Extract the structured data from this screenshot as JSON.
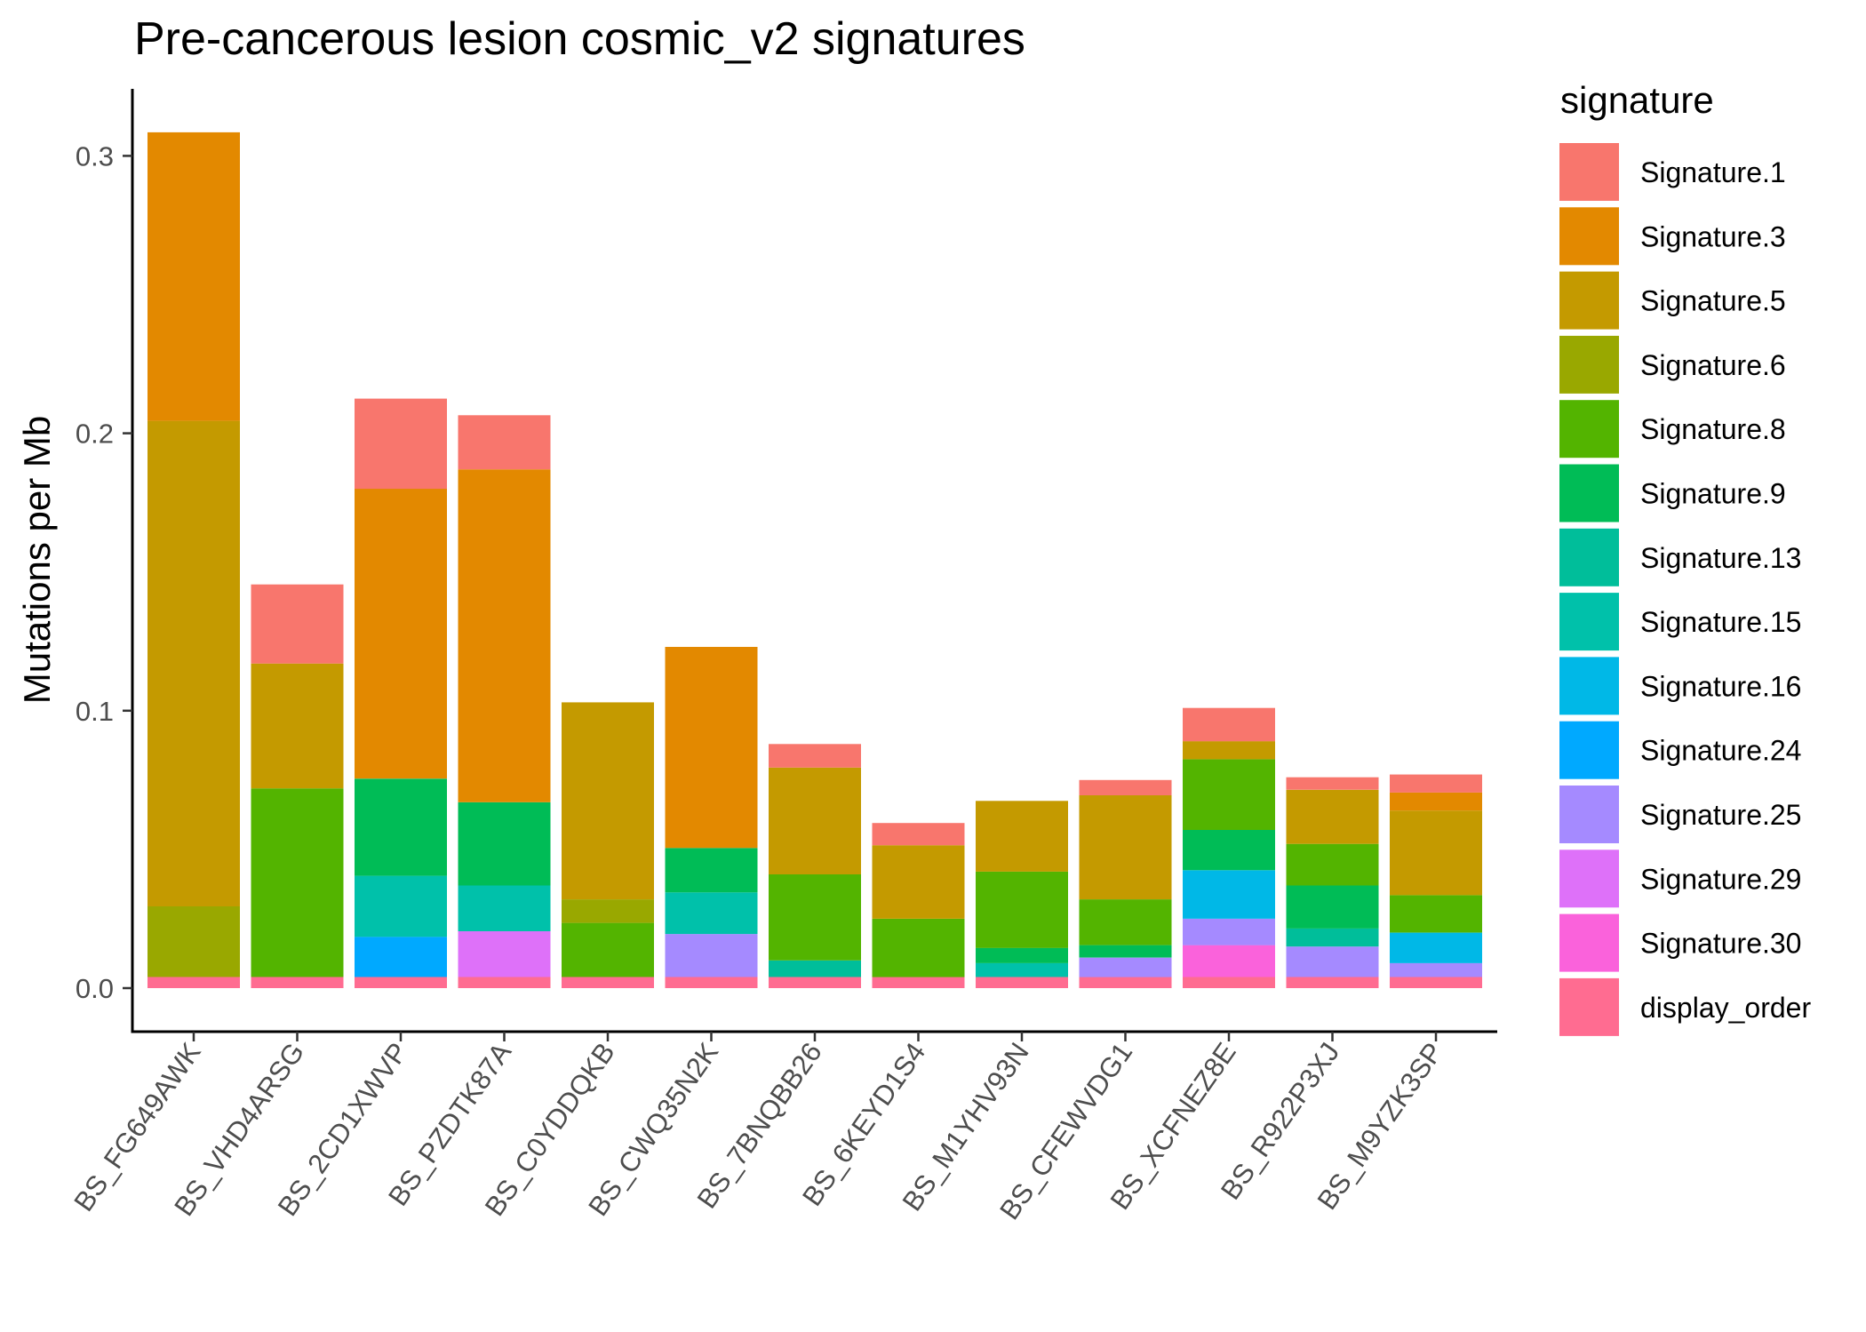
{
  "chart_data": {
    "type": "bar",
    "stacked": true,
    "title": "Pre-cancerous lesion cosmic_v2 signatures",
    "xlabel": "",
    "ylabel": "Mutations per Mb",
    "ylim": [
      -0.015,
      0.32
    ],
    "yticks": [
      "0.0",
      "0.1",
      "0.2",
      "0.3"
    ],
    "grid": false,
    "legend": {
      "title": "signature",
      "position": "right"
    },
    "categories": [
      "BS_FG649AWK",
      "BS_VHD4ARSG",
      "BS_2CD1XWVP",
      "BS_PZDTK87A",
      "BS_C0YDDQKB",
      "BS_CWQ35N2K",
      "BS_7BNQBB26",
      "BS_6KEYD1S4",
      "BS_M1YHV93N",
      "BS_CFEWVDG1",
      "BS_XCFNEZ8E",
      "BS_R922P3XJ",
      "BS_M9YZK3SP"
    ],
    "series": [
      {
        "name": "display_order",
        "color": "#FF6C91",
        "values": [
          0.004,
          0.004,
          0.004,
          0.004,
          0.004,
          0.004,
          0.004,
          0.004,
          0.004,
          0.004,
          0.004,
          0.004,
          0.004
        ]
      },
      {
        "name": "Signature.30",
        "color": "#FA62DB",
        "values": [
          0,
          0,
          0,
          0,
          0,
          0,
          0,
          0,
          0,
          0,
          0.0115,
          0,
          0
        ]
      },
      {
        "name": "Signature.29",
        "color": "#DE71F9",
        "values": [
          0,
          0,
          0,
          0.0165,
          0,
          0,
          0,
          0,
          0,
          0,
          0,
          0,
          0
        ]
      },
      {
        "name": "Signature.25",
        "color": "#A58AFF",
        "values": [
          0,
          0,
          0,
          0,
          0,
          0.0155,
          0,
          0,
          0,
          0.007,
          0.0095,
          0.011,
          0.005
        ]
      },
      {
        "name": "Signature.24",
        "color": "#00A9FF",
        "values": [
          0,
          0,
          0.0145,
          0,
          0,
          0,
          0,
          0,
          0,
          0,
          0,
          0,
          0
        ]
      },
      {
        "name": "Signature.16",
        "color": "#00B8E7",
        "values": [
          0,
          0,
          0,
          0,
          0,
          0,
          0,
          0,
          0,
          0,
          0.0175,
          0,
          0.011
        ]
      },
      {
        "name": "Signature.15",
        "color": "#00C1AA",
        "values": [
          0,
          0,
          0.022,
          0.0165,
          0,
          0.015,
          0,
          0,
          0.005,
          0,
          0,
          0,
          0
        ]
      },
      {
        "name": "Signature.13",
        "color": "#00BE9A",
        "values": [
          0,
          0,
          0,
          0,
          0,
          0,
          0.006,
          0,
          0,
          0,
          0,
          0.0065,
          0
        ]
      },
      {
        "name": "Signature.9",
        "color": "#00BC56",
        "values": [
          0,
          0,
          0.035,
          0.03,
          0,
          0.016,
          0,
          0,
          0.0055,
          0.0045,
          0.0145,
          0.0155,
          0
        ]
      },
      {
        "name": "Signature.8",
        "color": "#53B400",
        "values": [
          0,
          0.068,
          0,
          0,
          0.0195,
          0,
          0.031,
          0.021,
          0.0275,
          0.0165,
          0.0255,
          0.015,
          0.0135
        ]
      },
      {
        "name": "Signature.6",
        "color": "#99A800",
        "values": [
          0.0255,
          0,
          0,
          0,
          0.0085,
          0,
          0,
          0,
          0,
          0,
          0,
          0,
          0
        ]
      },
      {
        "name": "Signature.5",
        "color": "#C49A00",
        "values": [
          0.175,
          0.045,
          0,
          0,
          0.071,
          0,
          0.0385,
          0.0265,
          0.0255,
          0.0375,
          0.0065,
          0.0195,
          0.0305
        ]
      },
      {
        "name": "Signature.3",
        "color": "#E38900",
        "values": [
          0.104,
          0,
          0.1045,
          0.12,
          0,
          0.0725,
          0,
          0,
          0,
          0,
          0,
          0,
          0.0065
        ]
      },
      {
        "name": "Signature.1",
        "color": "#F8766D",
        "values": [
          0,
          0.0285,
          0.0325,
          0.0195,
          0,
          0,
          0.0085,
          0.008,
          0,
          0.0055,
          0.012,
          0.0045,
          0.0065
        ]
      }
    ],
    "legend_order": [
      "Signature.1",
      "Signature.3",
      "Signature.5",
      "Signature.6",
      "Signature.8",
      "Signature.9",
      "Signature.13",
      "Signature.15",
      "Signature.16",
      "Signature.24",
      "Signature.25",
      "Signature.29",
      "Signature.30",
      "display_order"
    ]
  }
}
